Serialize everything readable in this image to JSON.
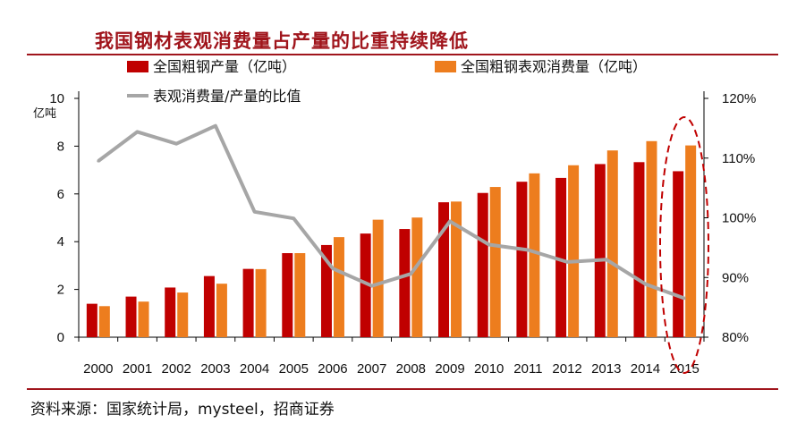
{
  "title": "我国钢材表观消费量占产量的比重持续降低",
  "source": "资料来源：国家统计局，mysteel，招商证券",
  "colors": {
    "production": "#c00000",
    "consumption": "#ed7d1e",
    "ratio": "#a6a6a6",
    "accent": "#a0151c",
    "highlight_ellipse": "#c00000"
  },
  "chart_data": {
    "type": "bar",
    "categories": [
      "2000",
      "2001",
      "2002",
      "2003",
      "2004",
      "2005",
      "2006",
      "2007",
      "2008",
      "2009",
      "2010",
      "2011",
      "2012",
      "2013",
      "2014",
      "2015"
    ],
    "series": [
      {
        "name": "全国粗钢产量（亿吨）",
        "type": "bar",
        "axis": "left",
        "values": [
          1.4,
          1.7,
          2.08,
          2.56,
          2.86,
          3.52,
          3.86,
          4.34,
          4.53,
          5.65,
          6.04,
          6.51,
          6.67,
          7.25,
          7.33,
          6.95
        ]
      },
      {
        "name": "全国粗钢表观消费量（亿吨）",
        "type": "bar",
        "axis": "left",
        "values": [
          1.3,
          1.49,
          1.87,
          2.24,
          2.85,
          3.52,
          4.19,
          4.92,
          5.01,
          5.68,
          6.29,
          6.86,
          7.2,
          7.82,
          8.21,
          8.03
        ]
      },
      {
        "name": "表观消费量/产量的比值",
        "type": "line",
        "axis": "right",
        "values": [
          109.5,
          114.4,
          112.4,
          115.4,
          101.0,
          99.9,
          91.5,
          88.6,
          90.6,
          99.4,
          95.5,
          94.6,
          92.6,
          93.0,
          88.9,
          86.5
        ]
      }
    ],
    "y_left": {
      "label": "亿吨",
      "ylim": [
        0,
        10
      ],
      "ticks": [
        "0",
        "2",
        "4",
        "6",
        "8",
        "10"
      ],
      "tick_values": [
        0,
        2,
        4,
        6,
        8,
        10
      ]
    },
    "y_right": {
      "ylim": [
        80,
        120
      ],
      "ticks": [
        "80%",
        "90%",
        "100%",
        "110%",
        "120%"
      ],
      "tick_values": [
        80,
        90,
        100,
        110,
        120
      ]
    },
    "legend_position": "top",
    "grid": false,
    "annotation": "dashed ellipse highlighting 2015"
  }
}
